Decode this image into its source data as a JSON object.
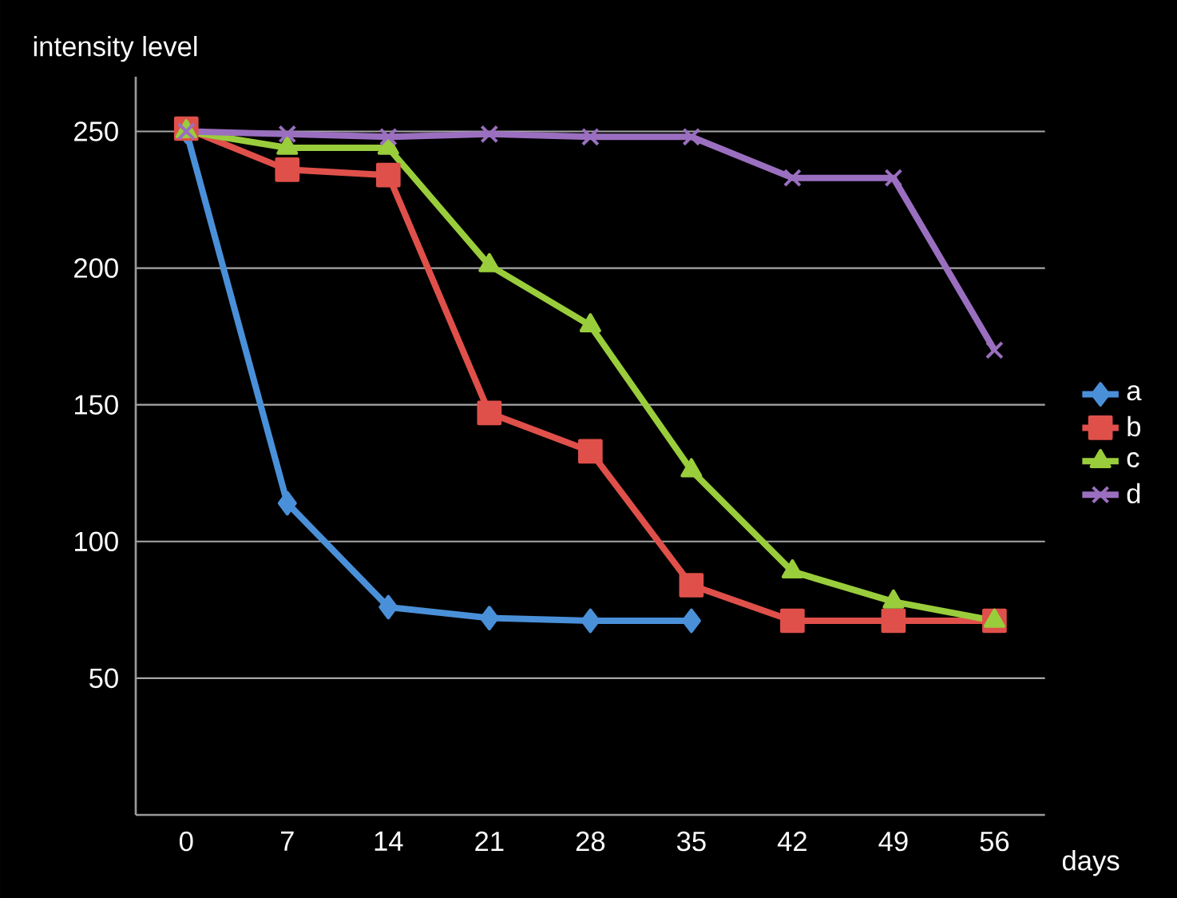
{
  "chart_data": {
    "type": "line",
    "xlabel": "days",
    "ylabel": "intensity level",
    "categories": [
      "0",
      "7",
      "14",
      "21",
      "28",
      "35",
      "42",
      "49",
      "56"
    ],
    "ylim": [
      0,
      270
    ],
    "yticks": [
      50,
      100,
      150,
      200,
      250
    ],
    "grid": "y",
    "legend": "right",
    "line_style": "solid",
    "series": [
      {
        "name": "a",
        "color": "#4a90d9",
        "marker": "diamond",
        "values": [
          250,
          114,
          76,
          72,
          71,
          71,
          null,
          null,
          null
        ]
      },
      {
        "name": "b",
        "color": "#e0504a",
        "marker": "square",
        "values": [
          251,
          236,
          234,
          147,
          133,
          84,
          71,
          71,
          71
        ]
      },
      {
        "name": "c",
        "color": "#9acd3c",
        "marker": "triangle",
        "values": [
          250,
          244,
          244,
          201,
          179,
          126,
          89,
          78,
          71
        ]
      },
      {
        "name": "d",
        "color": "#9b6fc0",
        "marker": "cross",
        "values": [
          250,
          249,
          248,
          249,
          248,
          248,
          233,
          233,
          170
        ]
      }
    ]
  }
}
